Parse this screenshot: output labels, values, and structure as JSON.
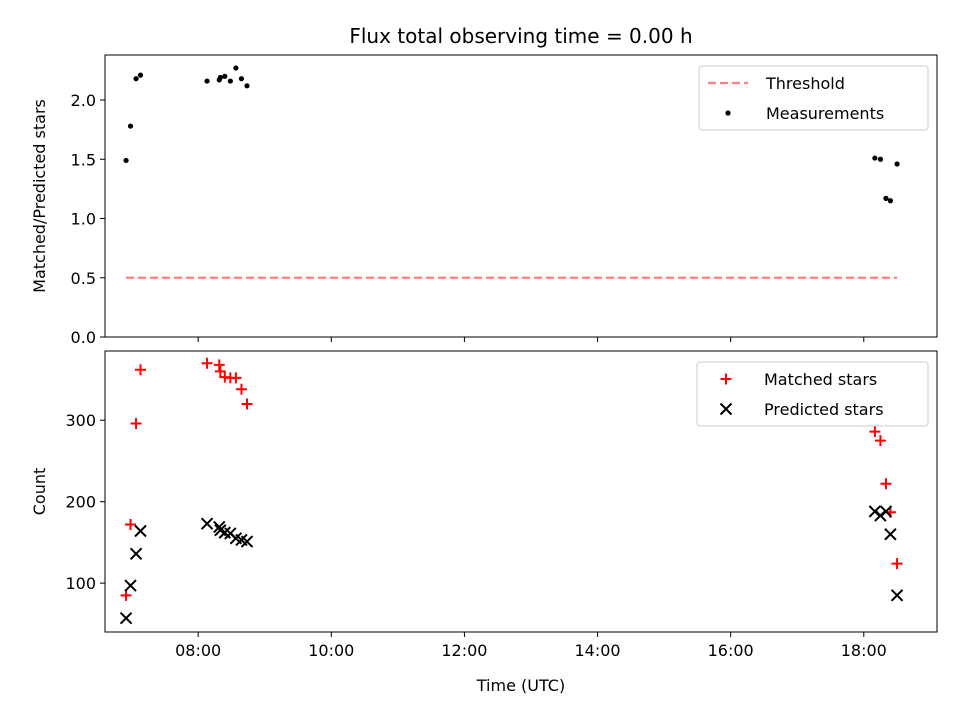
{
  "chart_data": [
    {
      "type": "scatter",
      "title": "Flux total observing time = 0.00 h",
      "xlabel": "",
      "ylabel": "Matched/Predicted stars",
      "ylim": [
        0.0,
        2.38
      ],
      "yticks": [
        0.0,
        0.5,
        1.0,
        1.5,
        2.0
      ],
      "ytick_labels": [
        "0.0",
        "0.5",
        "1.0",
        "1.5",
        "2.0"
      ],
      "xlim": [
        "06:36",
        "19:06"
      ],
      "xticks": [
        "08:00",
        "10:00",
        "12:00",
        "14:00",
        "16:00",
        "18:00"
      ],
      "show_xtick_labels": false,
      "legend_position": "top-right",
      "series": [
        {
          "name": "Threshold",
          "kind": "line",
          "style": "dashed",
          "color": "#ff7f7f",
          "x": [
            "06:55",
            "18:30"
          ],
          "y": [
            0.5,
            0.5
          ]
        },
        {
          "name": "Measurements",
          "kind": "scatter",
          "marker": "dot",
          "color": "#000000",
          "x": [
            "06:55",
            "06:59",
            "07:04",
            "07:08",
            "08:08",
            "08:19",
            "08:20",
            "08:24",
            "08:29",
            "08:34",
            "08:39",
            "08:44",
            "18:10",
            "18:15",
            "18:20",
            "18:24",
            "18:30"
          ],
          "y": [
            1.49,
            1.78,
            2.18,
            2.21,
            2.16,
            2.17,
            2.19,
            2.2,
            2.16,
            2.27,
            2.18,
            2.12,
            1.51,
            1.5,
            1.17,
            1.15,
            1.46
          ]
        }
      ]
    },
    {
      "type": "scatter",
      "title": "",
      "xlabel": "Time (UTC)",
      "ylabel": "Count",
      "ylim": [
        40,
        385
      ],
      "yticks": [
        100,
        200,
        300
      ],
      "ytick_labels": [
        "100",
        "200",
        "300"
      ],
      "xlim": [
        "06:36",
        "19:06"
      ],
      "xticks": [
        "08:00",
        "10:00",
        "12:00",
        "14:00",
        "16:00",
        "18:00"
      ],
      "show_xtick_labels": true,
      "legend_position": "top-right",
      "series": [
        {
          "name": "Matched stars",
          "kind": "scatter",
          "marker": "plus",
          "color": "#ff0000",
          "x": [
            "06:55",
            "06:59",
            "07:04",
            "07:08",
            "08:08",
            "08:19",
            "08:20",
            "08:24",
            "08:29",
            "08:34",
            "08:39",
            "08:44",
            "18:10",
            "18:15",
            "18:20",
            "18:24",
            "18:30"
          ],
          "y": [
            85,
            172,
            296,
            362,
            370,
            368,
            360,
            353,
            352,
            352,
            338,
            320,
            286,
            275,
            222,
            187,
            124
          ]
        },
        {
          "name": "Predicted stars",
          "kind": "scatter",
          "marker": "x",
          "color": "#000000",
          "x": [
            "06:55",
            "06:59",
            "07:04",
            "07:08",
            "08:08",
            "08:19",
            "08:20",
            "08:24",
            "08:29",
            "08:34",
            "08:39",
            "08:44",
            "18:10",
            "18:15",
            "18:20",
            "18:24",
            "18:30"
          ],
          "y": [
            57,
            97,
            136,
            164,
            173,
            169,
            165,
            162,
            161,
            155,
            153,
            151,
            188,
            183,
            188,
            160,
            85
          ]
        }
      ]
    }
  ]
}
